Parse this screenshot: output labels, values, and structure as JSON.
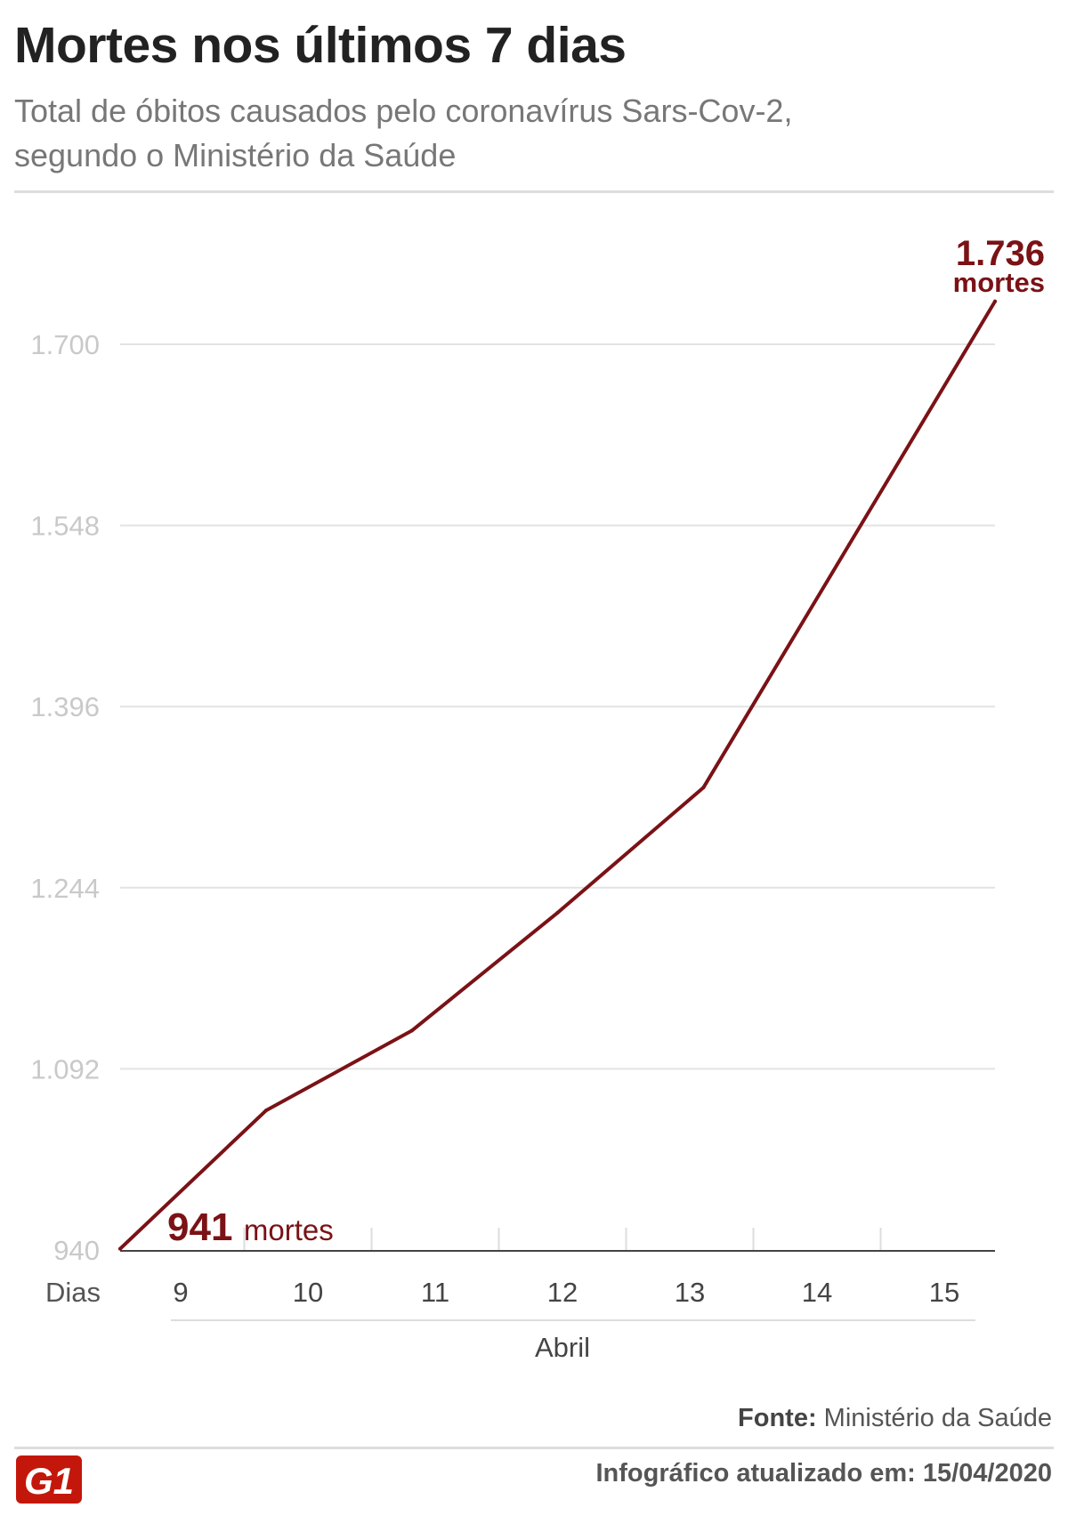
{
  "header": {
    "title": "Mortes nos últimos 7 dias",
    "subtitle": "Total de óbitos causados pelo coronavírus Sars-Cov-2, segundo o Ministério da Saúde"
  },
  "chart_data": {
    "type": "line",
    "title": "Mortes nos últimos 7 dias",
    "subtitle": "Total de óbitos causados pelo coronavírus Sars-Cov-2, segundo o Ministério da Saúde",
    "xlabel": "Dias",
    "x_group_label": "Abril",
    "categories": [
      "9",
      "10",
      "11",
      "12",
      "13",
      "14",
      "15"
    ],
    "values": [
      941,
      1057,
      1124,
      1223,
      1328,
      1532,
      1736
    ],
    "yticks": [
      "940",
      "1.092",
      "1.244",
      "1.396",
      "1.548",
      "1.700"
    ],
    "ylim": [
      940,
      1736
    ],
    "grid": true,
    "line_color": "#7a1216",
    "annotations": {
      "start_value": "941",
      "start_unit": "mortes",
      "end_value": "1.736",
      "end_unit": "mortes"
    }
  },
  "footer": {
    "source_label": "Fonte:",
    "source_text": "Ministério da Saúde",
    "updated": "Infográfico atualizado em: 15/04/2020",
    "logo_text": "G1",
    "logo_color": "#c4170c"
  }
}
